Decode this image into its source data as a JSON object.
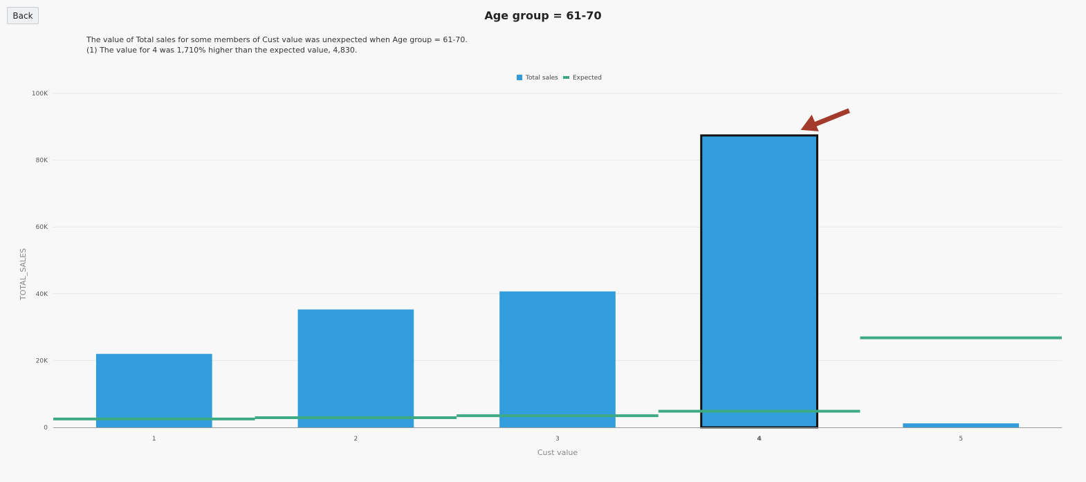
{
  "toolbar": {
    "back_label": "Back"
  },
  "title": "Age group = 61-70",
  "description": {
    "line1": "The value of Total sales for some members of Cust value was unexpected when Age group = 61-70.",
    "line2": "(1) The value for 4 was 1,710% higher than the expected value, 4,830."
  },
  "chart_data": {
    "type": "bar",
    "title": "Age group = 61-70",
    "xlabel": "Cust value",
    "ylabel": "TOTAL_SALES",
    "categories": [
      "1",
      "2",
      "3",
      "4",
      "5"
    ],
    "series": [
      {
        "name": "Total sales",
        "type": "bar",
        "values": [
          22000,
          35300,
          40700,
          87400,
          1200
        ],
        "color": "#319ddc"
      },
      {
        "name": "Expected",
        "type": "step-line",
        "values": [
          2500,
          2900,
          3500,
          4830,
          26800
        ],
        "color": "#3daa84"
      }
    ],
    "ylim": [
      0,
      100000
    ],
    "yticks": [
      0,
      20000,
      40000,
      60000,
      80000,
      100000
    ],
    "ytick_labels": [
      "0",
      "20K",
      "40K",
      "60K",
      "80K",
      "100K"
    ],
    "highlighted_category": "4",
    "highlight_color": "#111111",
    "arrow_color": "#a33b2c",
    "grid": true,
    "legend_position": "top-center"
  }
}
